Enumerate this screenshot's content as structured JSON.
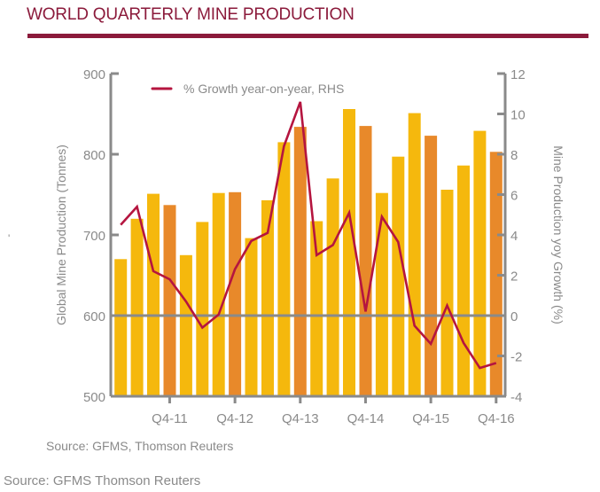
{
  "page": {
    "source_caption": "Source: GFMS Thomson Reuters",
    "stray_mark": "'"
  },
  "chart_data": {
    "type": "bar",
    "title": "WORLD QUARTERLY MINE PRODUCTION",
    "source": "Source: GFMS, Thomson Reuters",
    "xlabel": "",
    "ylabel": "Global Mine Production (Tonnes)",
    "y2label": "Mine Production yoy Growth (%)",
    "ylim": [
      500,
      900
    ],
    "y2lim": [
      -4,
      12
    ],
    "yticks": [
      500,
      600,
      700,
      800,
      900
    ],
    "y2ticks": [
      -4,
      -2,
      0,
      2,
      4,
      6,
      8,
      10,
      12
    ],
    "grid": false,
    "legend_position": "top",
    "categories": [
      "Q1-11",
      "Q2-11",
      "Q3-11",
      "Q4-11",
      "Q1-12",
      "Q2-12",
      "Q3-12",
      "Q4-12",
      "Q1-13",
      "Q2-13",
      "Q3-13",
      "Q4-13",
      "Q1-14",
      "Q2-14",
      "Q3-14",
      "Q4-14",
      "Q1-15",
      "Q2-15",
      "Q3-15",
      "Q4-15",
      "Q1-16",
      "Q2-16",
      "Q3-16",
      "Q4-16"
    ],
    "xtick_labels": [
      {
        "category": "Q4-11",
        "label": "Q4-11"
      },
      {
        "category": "Q4-12",
        "label": "Q4-12"
      },
      {
        "category": "Q4-13",
        "label": "Q4-13"
      },
      {
        "category": "Q4-14",
        "label": "Q4-14"
      },
      {
        "category": "Q4-15",
        "label": "Q4-15"
      },
      {
        "category": "Q4-16",
        "label": "Q4-16"
      }
    ],
    "series": [
      {
        "name": "Global Mine Production (Tonnes)",
        "type": "bar",
        "axis": "left",
        "color": "#F5B80D",
        "q4_color": "#E8892A",
        "values": [
          670,
          720,
          751,
          737,
          675,
          716,
          752,
          753,
          696,
          743,
          815,
          834,
          717,
          770,
          856,
          835,
          752,
          797,
          851,
          823,
          756,
          786,
          829,
          803
        ]
      },
      {
        "name": "% Growth year-on-year, RHS",
        "type": "line",
        "axis": "right",
        "color": "#B5153F",
        "values": [
          4.5,
          5.4,
          2.2,
          1.8,
          0.7,
          -0.6,
          0.05,
          2.3,
          3.7,
          4.1,
          8.4,
          10.6,
          3.0,
          3.5,
          5.1,
          0.2,
          4.9,
          3.65,
          -0.5,
          -1.4,
          0.5,
          -1.35,
          -2.6,
          -2.35
        ]
      }
    ],
    "reference_line": {
      "axis": "right",
      "value": 0,
      "color": "#8a8a8a"
    },
    "colors": {
      "title": "#8B1A3B",
      "axis": "#8a8a8a"
    }
  }
}
